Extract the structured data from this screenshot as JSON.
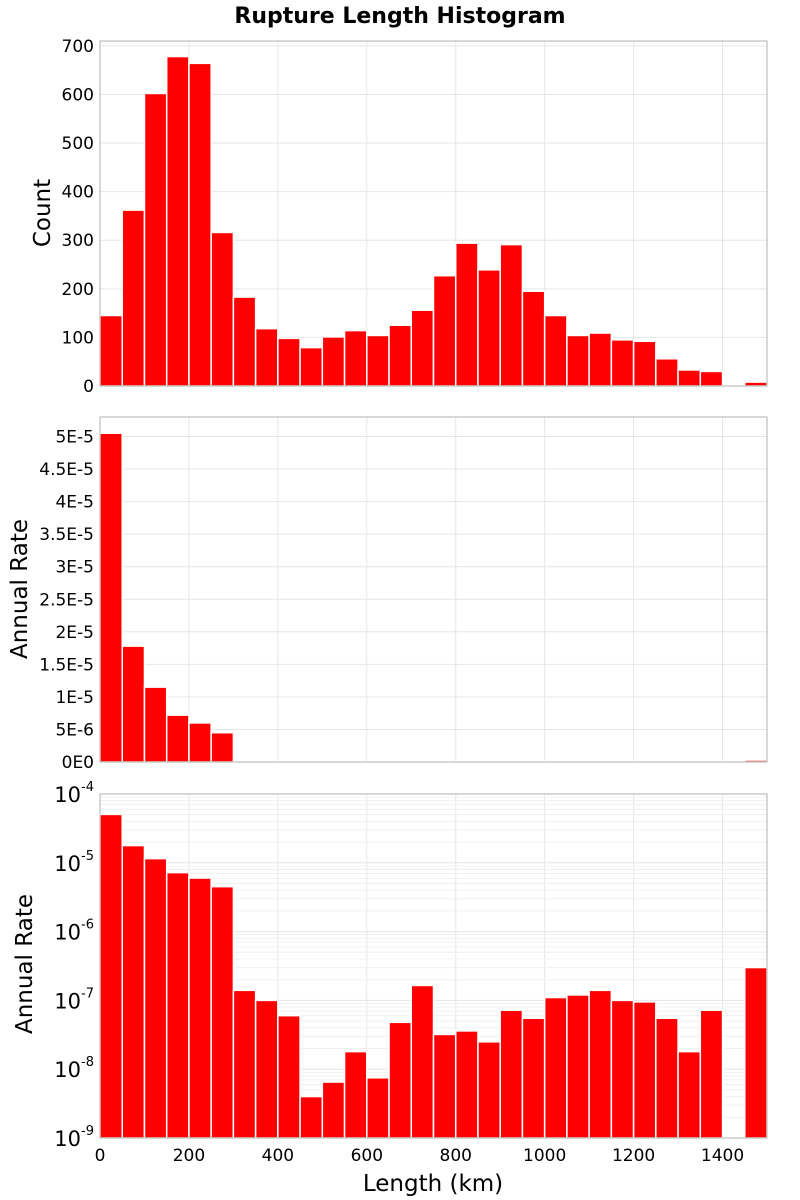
{
  "title": "Rupture Length Histogram",
  "colors": {
    "bar": "#ff0000",
    "grid": "#e6e6e6",
    "frame": "#b0b0b0"
  },
  "chart_data": [
    {
      "type": "bar",
      "id": "count",
      "title": "Rupture Length Histogram",
      "xlabel": "",
      "ylabel": "Count",
      "bin_width": 50,
      "x_start": 0,
      "xlim": [
        0,
        1500
      ],
      "ylim": [
        0,
        710
      ],
      "yscale": "linear",
      "yticks": [
        0,
        100,
        200,
        300,
        400,
        500,
        600,
        700
      ],
      "ytick_labels": [
        "0",
        "100",
        "200",
        "300",
        "400",
        "500",
        "600",
        "700"
      ],
      "values": [
        145,
        362,
        602,
        678,
        664,
        316,
        183,
        118,
        98,
        79,
        101,
        114,
        104,
        125,
        156,
        227,
        294,
        239,
        291,
        195,
        145,
        104,
        109,
        95,
        92,
        56,
        33,
        30,
        0,
        8
      ]
    },
    {
      "type": "bar",
      "id": "rate-linear",
      "xlabel": "",
      "ylabel": "Annual Rate",
      "bin_width": 50,
      "x_start": 0,
      "xlim": [
        0,
        1500
      ],
      "ylim": [
        0,
        5.3e-05
      ],
      "yscale": "linear",
      "yticks": [
        0,
        5e-06,
        1e-05,
        1.5e-05,
        2e-05,
        2.5e-05,
        3e-05,
        3.5e-05,
        4e-05,
        4.5e-05,
        5e-05
      ],
      "ytick_labels": [
        "0E0",
        "5E-6",
        "1E-5",
        "1.5E-5",
        "2E-5",
        "2.5E-5",
        "3E-5",
        "3.5E-5",
        "4E-5",
        "4.5E-5",
        "5E-5"
      ],
      "values": [
        5.05e-05,
        1.78e-05,
        1.15e-05,
        7.2e-06,
        6e-06,
        4.5e-06,
        1.4e-07,
        1e-07,
        6e-08,
        4e-09,
        6.5e-09,
        1.8e-08,
        7.5e-09,
        4.8e-08,
        1.65e-07,
        3.2e-08,
        3.6e-08,
        2.5e-08,
        7.2e-08,
        5.5e-08,
        1.1e-07,
        1.2e-07,
        1.4e-07,
        1e-07,
        9.5e-08,
        5.5e-08,
        1.8e-08,
        7.2e-08,
        0,
        3e-07
      ]
    },
    {
      "type": "bar",
      "id": "rate-log",
      "xlabel": "Length (km)",
      "ylabel": "Annual Rate",
      "bin_width": 50,
      "x_start": 0,
      "xlim": [
        0,
        1500
      ],
      "ylim": [
        1e-09,
        0.0001
      ],
      "yscale": "log",
      "yticks_exponents": [
        -9,
        -8,
        -7,
        -6,
        -5,
        -4
      ],
      "xticks": [
        0,
        200,
        400,
        600,
        800,
        1000,
        1200,
        1400
      ],
      "xtick_labels": [
        "0",
        "200",
        "400",
        "600",
        "800",
        "1000",
        "1200",
        "1400"
      ],
      "values": [
        5.05e-05,
        1.78e-05,
        1.15e-05,
        7.2e-06,
        6e-06,
        4.5e-06,
        1.4e-07,
        1e-07,
        6e-08,
        4e-09,
        6.5e-09,
        1.8e-08,
        7.5e-09,
        4.8e-08,
        1.65e-07,
        3.2e-08,
        3.6e-08,
        2.5e-08,
        7.2e-08,
        5.5e-08,
        1.1e-07,
        1.2e-07,
        1.4e-07,
        1e-07,
        9.5e-08,
        5.5e-08,
        1.8e-08,
        7.2e-08,
        0,
        3e-07
      ]
    }
  ]
}
